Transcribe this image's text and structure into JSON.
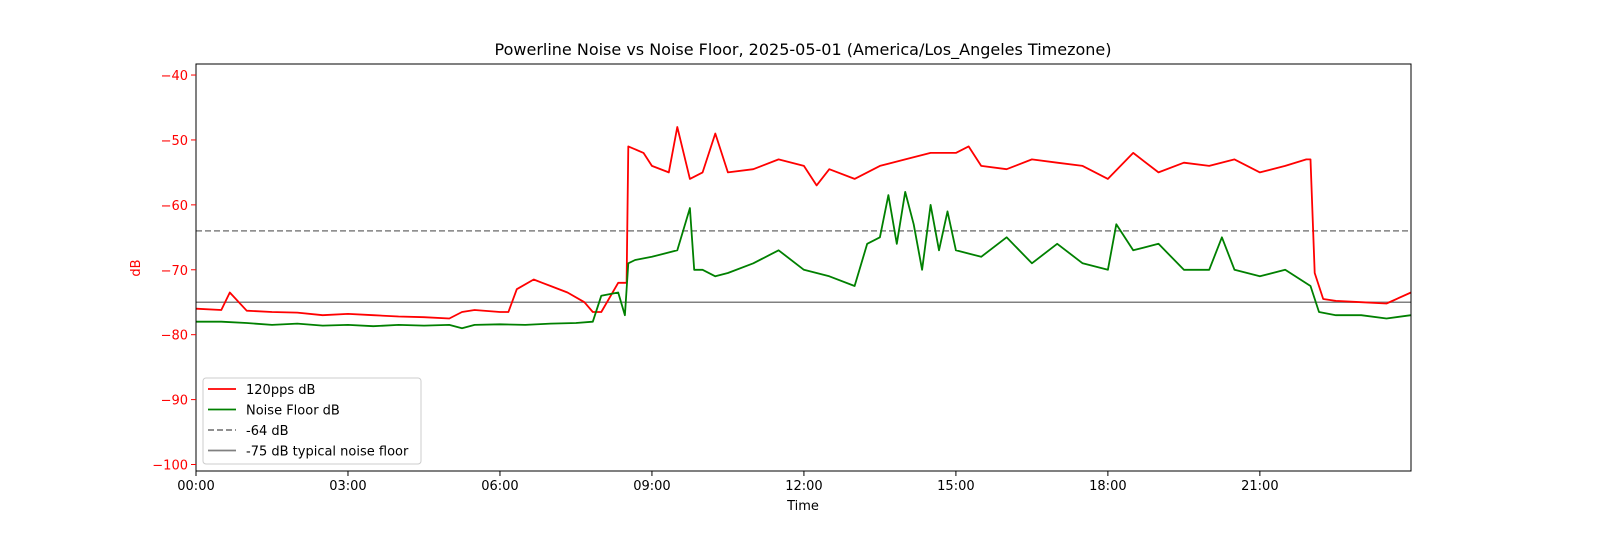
{
  "chart_data": {
    "type": "line",
    "title": "Powerline Noise vs Noise Floor, 2025-05-01 (America/Los_Angeles Timezone)",
    "xlabel": "Time",
    "ylabel": "dB",
    "xlim": [
      "00:00",
      "23:59"
    ],
    "ylim": [
      -101,
      -38.3
    ],
    "x_ticks": [
      "00:00",
      "03:00",
      "06:00",
      "09:00",
      "12:00",
      "15:00",
      "18:00",
      "21:00"
    ],
    "y_ticks": [
      -40,
      -50,
      -60,
      -70,
      -80,
      -90,
      -100
    ],
    "y_tick_labels": [
      "−40",
      "−50",
      "−60",
      "−70",
      "−80",
      "−90",
      "−100"
    ],
    "grid": false,
    "legend_position": "lower-left",
    "colors": {
      "signal": "#ff0000",
      "noise_floor": "#008000",
      "reference": "#808080",
      "ylabel_color": "#ff0000"
    },
    "series": [
      {
        "name": "120pps dB",
        "color": "#ff0000",
        "x": [
          "00:00",
          "00:30",
          "00:40",
          "01:00",
          "01:30",
          "02:00",
          "02:30",
          "03:00",
          "03:30",
          "04:00",
          "04:30",
          "05:00",
          "05:15",
          "05:30",
          "06:00",
          "06:10",
          "06:20",
          "06:40",
          "06:50",
          "07:00",
          "07:20",
          "07:40",
          "07:50",
          "08:00",
          "08:20",
          "08:30",
          "08:32",
          "08:50",
          "09:00",
          "09:20",
          "09:30",
          "09:45",
          "10:00",
          "10:15",
          "10:30",
          "11:00",
          "11:30",
          "12:00",
          "12:15",
          "12:30",
          "13:00",
          "13:30",
          "14:00",
          "14:30",
          "15:00",
          "15:15",
          "15:30",
          "16:00",
          "16:30",
          "17:00",
          "17:30",
          "18:00",
          "18:30",
          "19:00",
          "19:30",
          "20:00",
          "20:30",
          "21:00",
          "21:30",
          "21:55",
          "22:00",
          "22:05",
          "22:15",
          "22:30",
          "23:00",
          "23:30",
          "23:59"
        ],
        "y": [
          -76,
          -76.2,
          -73.5,
          -76.3,
          -76.5,
          -76.6,
          -77,
          -76.8,
          -77,
          -77.2,
          -77.3,
          -77.5,
          -76.5,
          -76.2,
          -76.5,
          -76.5,
          -73,
          -71.5,
          -72,
          -72.5,
          -73.5,
          -75,
          -76.5,
          -76.5,
          -72,
          -72,
          -51,
          -52,
          -54,
          -55,
          -48,
          -56,
          -55,
          -49,
          -55,
          -54.5,
          -53,
          -54,
          -57,
          -54.5,
          -56,
          -54,
          -53,
          -52,
          -52,
          -51,
          -54,
          -54.5,
          -53,
          -53.5,
          -54,
          -56,
          -52,
          -55,
          -53.5,
          -54,
          -53,
          -55,
          -54,
          -53,
          -53,
          -70.5,
          -74.5,
          -74.8,
          -75,
          -75.2,
          -73.5
        ]
      },
      {
        "name": "Noise Floor dB",
        "color": "#008000",
        "x": [
          "00:00",
          "00:30",
          "01:00",
          "01:30",
          "02:00",
          "02:30",
          "03:00",
          "03:30",
          "04:00",
          "04:30",
          "05:00",
          "05:15",
          "05:30",
          "06:00",
          "06:30",
          "07:00",
          "07:30",
          "07:50",
          "08:00",
          "08:20",
          "08:28",
          "08:32",
          "08:40",
          "09:00",
          "09:30",
          "09:45",
          "09:50",
          "10:00",
          "10:15",
          "10:30",
          "11:00",
          "11:30",
          "12:00",
          "12:30",
          "13:00",
          "13:15",
          "13:30",
          "13:40",
          "13:50",
          "14:00",
          "14:10",
          "14:20",
          "14:30",
          "14:40",
          "14:50",
          "15:00",
          "15:30",
          "16:00",
          "16:30",
          "17:00",
          "17:30",
          "18:00",
          "18:10",
          "18:30",
          "19:00",
          "19:30",
          "20:00",
          "20:15",
          "20:30",
          "21:00",
          "21:30",
          "22:00",
          "22:10",
          "22:30",
          "23:00",
          "23:30",
          "23:59"
        ],
        "y": [
          -78,
          -78,
          -78.2,
          -78.5,
          -78.3,
          -78.6,
          -78.5,
          -78.7,
          -78.5,
          -78.6,
          -78.5,
          -79,
          -78.5,
          -78.4,
          -78.5,
          -78.3,
          -78.2,
          -78,
          -74,
          -73.5,
          -77,
          -69,
          -68.5,
          -68,
          -67,
          -60.5,
          -70,
          -70,
          -71,
          -70.5,
          -69,
          -67,
          -70,
          -71,
          -72.5,
          -66,
          -65,
          -58.5,
          -66,
          -58,
          -63,
          -70,
          -60,
          -67,
          -61,
          -67,
          -68,
          -65,
          -69,
          -66,
          -69,
          -70,
          -63,
          -67,
          -66,
          -70,
          -70,
          -65,
          -70,
          -71,
          -70,
          -72.5,
          -76.5,
          -77,
          -77,
          -77.5,
          -77
        ]
      },
      {
        "name": "-64 dB",
        "color": "#808080",
        "dashed": true,
        "value": -64
      },
      {
        "name": "-75 dB typical noise floor",
        "color": "#808080",
        "dashed": false,
        "value": -75
      }
    ]
  }
}
